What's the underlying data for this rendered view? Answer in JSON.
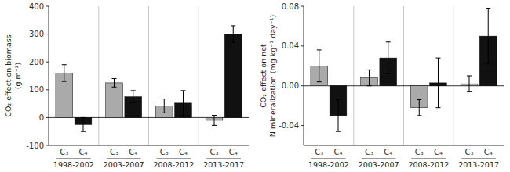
{
  "chart_data": [
    {
      "type": "bar",
      "ylabel": "CO₂ effect on biomass\n(g m⁻²)",
      "categories": [
        "1998-2002",
        "2003-2007",
        "2008-2012",
        "2013-2017"
      ],
      "series": [
        {
          "name": "C₃",
          "color": "#aaaaaa",
          "values": [
            160,
            125,
            42,
            -10
          ],
          "errors": [
            30,
            15,
            25,
            18
          ]
        },
        {
          "name": "C₄",
          "color": "#111111",
          "values": [
            -25,
            75,
            52,
            300
          ],
          "errors": [
            25,
            22,
            45,
            30
          ]
        }
      ],
      "ylim": [
        -100,
        400
      ],
      "yticks": [
        -100,
        0,
        100,
        200,
        300,
        400
      ],
      "grid": false
    },
    {
      "type": "bar",
      "ylabel": "CO₂ effect on net\nN mineralization (mg kg⁻¹ day⁻¹)",
      "categories": [
        "1998-2002",
        "2003-2007",
        "2008-2012",
        "2013-2017"
      ],
      "series": [
        {
          "name": "C₃",
          "color": "#aaaaaa",
          "values": [
            0.02,
            0.008,
            -0.022,
            0.002
          ],
          "errors": [
            0.016,
            0.008,
            0.008,
            0.008
          ]
        },
        {
          "name": "C₄",
          "color": "#111111",
          "values": [
            -0.03,
            0.028,
            0.003,
            0.05
          ],
          "errors": [
            0.016,
            0.016,
            0.025,
            0.028
          ]
        }
      ],
      "ylim": [
        -0.06,
        0.08
      ],
      "yticks": [
        -0.04,
        {
          "value": 0,
          "label": "0.00"
        },
        0.04,
        0.08
      ],
      "grid": false
    }
  ]
}
